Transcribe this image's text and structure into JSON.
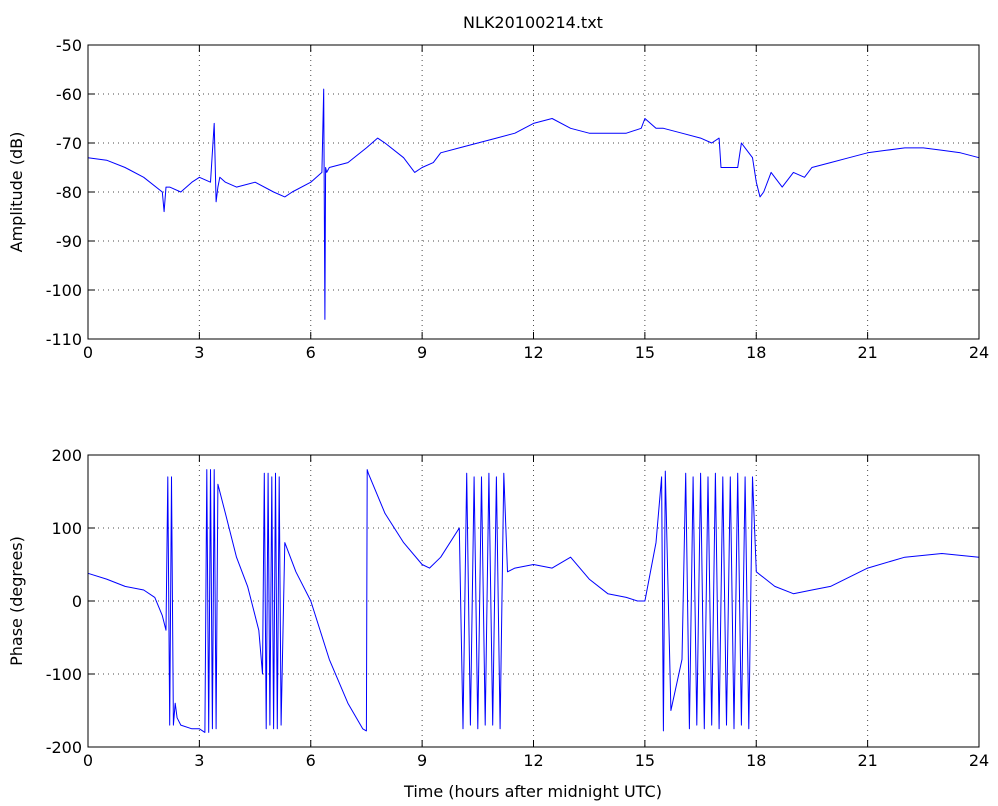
{
  "chart_data": [
    {
      "type": "line",
      "title": "NLK20100214.txt",
      "xlabel": "",
      "ylabel": "Amplitude (dB)",
      "xlim": [
        0,
        24
      ],
      "ylim": [
        -110,
        -50
      ],
      "xticks": [
        0,
        3,
        6,
        9,
        12,
        15,
        18,
        21,
        24
      ],
      "yticks": [
        -110,
        -100,
        -90,
        -80,
        -70,
        -60,
        -50
      ],
      "grid": true,
      "color": "#0000ff",
      "series": [
        {
          "x": [
            0,
            0.5,
            1.0,
            1.5,
            2.0,
            2.05,
            2.1,
            2.2,
            2.5,
            2.8,
            3.0,
            3.3,
            3.4,
            3.45,
            3.5,
            3.55,
            3.7,
            4.0,
            4.5,
            5.0,
            5.3,
            5.5,
            6.0,
            6.3,
            6.35,
            6.38,
            6.4,
            6.43,
            6.5,
            7.0,
            7.5,
            7.8,
            8.0,
            8.5,
            8.8,
            9.0,
            9.3,
            9.5,
            10.0,
            10.5,
            11.0,
            11.5,
            12.0,
            12.5,
            13.0,
            13.5,
            14.0,
            14.5,
            14.9,
            15.0,
            15.3,
            15.5,
            16.0,
            16.5,
            16.8,
            17.0,
            17.05,
            17.5,
            17.6,
            17.7,
            17.9,
            18.0,
            18.1,
            18.2,
            18.4,
            18.7,
            19.0,
            19.3,
            19.5,
            20.0,
            20.5,
            21.0,
            21.5,
            22.0,
            22.5,
            23.0,
            23.5,
            24.0
          ],
          "y": [
            -73,
            -73.5,
            -75,
            -77,
            -80,
            -84,
            -79,
            -79,
            -80,
            -78,
            -77,
            -78,
            -66,
            -82,
            -79,
            -77,
            -78,
            -79,
            -78,
            -80,
            -81,
            -80,
            -78,
            -76,
            -59,
            -106,
            -75,
            -76,
            -75,
            -74,
            -71,
            -69,
            -70,
            -73,
            -76,
            -75,
            -74,
            -72,
            -71,
            -70,
            -69,
            -68,
            -66,
            -65,
            -67,
            -68,
            -68,
            -68,
            -67,
            -65,
            -67,
            -67,
            -68,
            -69,
            -70,
            -69,
            -75,
            -75,
            -70,
            -71,
            -73,
            -78,
            -81,
            -80,
            -76,
            -79,
            -76,
            -77,
            -75,
            -74,
            -73,
            -72,
            -71.5,
            -71,
            -71,
            -71.5,
            -72,
            -73
          ]
        }
      ]
    },
    {
      "type": "line",
      "title": "",
      "xlabel": "Time (hours after midnight UTC)",
      "ylabel": "Phase (degrees)",
      "xlim": [
        0,
        24
      ],
      "ylim": [
        -200,
        200
      ],
      "xticks": [
        0,
        3,
        6,
        9,
        12,
        15,
        18,
        21,
        24
      ],
      "yticks": [
        -200,
        -100,
        0,
        100,
        200
      ],
      "grid": true,
      "color": "#0000ff",
      "series": [
        {
          "x": [
            0,
            0.5,
            1.0,
            1.5,
            1.8,
            2.0,
            2.1,
            2.15,
            2.2,
            2.25,
            2.3,
            2.35,
            2.4,
            2.5,
            2.8,
            3.0,
            3.15,
            3.2,
            3.25,
            3.3,
            3.35,
            3.4,
            3.45,
            3.5,
            3.7,
            4.0,
            4.3,
            4.6,
            4.7,
            4.75,
            4.8,
            4.85,
            4.9,
            4.95,
            5.0,
            5.05,
            5.1,
            5.15,
            5.2,
            5.3,
            5.6,
            6.0,
            6.5,
            7.0,
            7.4,
            7.5,
            7.52,
            7.55,
            8.0,
            8.5,
            9.0,
            9.2,
            9.5,
            10.0,
            10.1,
            10.2,
            10.3,
            10.4,
            10.5,
            10.6,
            10.7,
            10.8,
            10.9,
            11.0,
            11.1,
            11.2,
            11.3,
            11.5,
            12.0,
            12.5,
            13.0,
            13.5,
            14.0,
            14.5,
            14.8,
            15.0,
            15.3,
            15.45,
            15.5,
            15.55,
            15.7,
            16.0,
            16.1,
            16.2,
            16.3,
            16.4,
            16.5,
            16.6,
            16.7,
            16.8,
            16.9,
            17.0,
            17.1,
            17.2,
            17.3,
            17.4,
            17.5,
            17.6,
            17.7,
            17.8,
            17.9,
            18.0,
            18.5,
            19.0,
            19.5,
            20.0,
            21.0,
            22.0,
            23.0,
            24.0
          ],
          "y": [
            38,
            30,
            20,
            15,
            5,
            -20,
            -40,
            170,
            -170,
            170,
            -170,
            -140,
            -160,
            -170,
            -175,
            -175,
            -180,
            180,
            -180,
            180,
            -175,
            180,
            -175,
            160,
            120,
            60,
            20,
            -40,
            -100,
            175,
            -175,
            175,
            -170,
            170,
            -175,
            175,
            -175,
            170,
            -170,
            80,
            40,
            0,
            -80,
            -140,
            -175,
            -178,
            180,
            175,
            120,
            80,
            50,
            45,
            60,
            100,
            -175,
            175,
            -170,
            170,
            -175,
            170,
            -170,
            175,
            -170,
            170,
            -175,
            175,
            40,
            45,
            50,
            45,
            60,
            30,
            10,
            5,
            0,
            0,
            80,
            170,
            -178,
            178,
            -150,
            -80,
            175,
            -175,
            170,
            -170,
            175,
            -175,
            170,
            -170,
            175,
            -175,
            170,
            -170,
            170,
            -175,
            175,
            -170,
            170,
            -175,
            170,
            40,
            20,
            10,
            15,
            20,
            45,
            60,
            65,
            60
          ]
        }
      ]
    }
  ]
}
